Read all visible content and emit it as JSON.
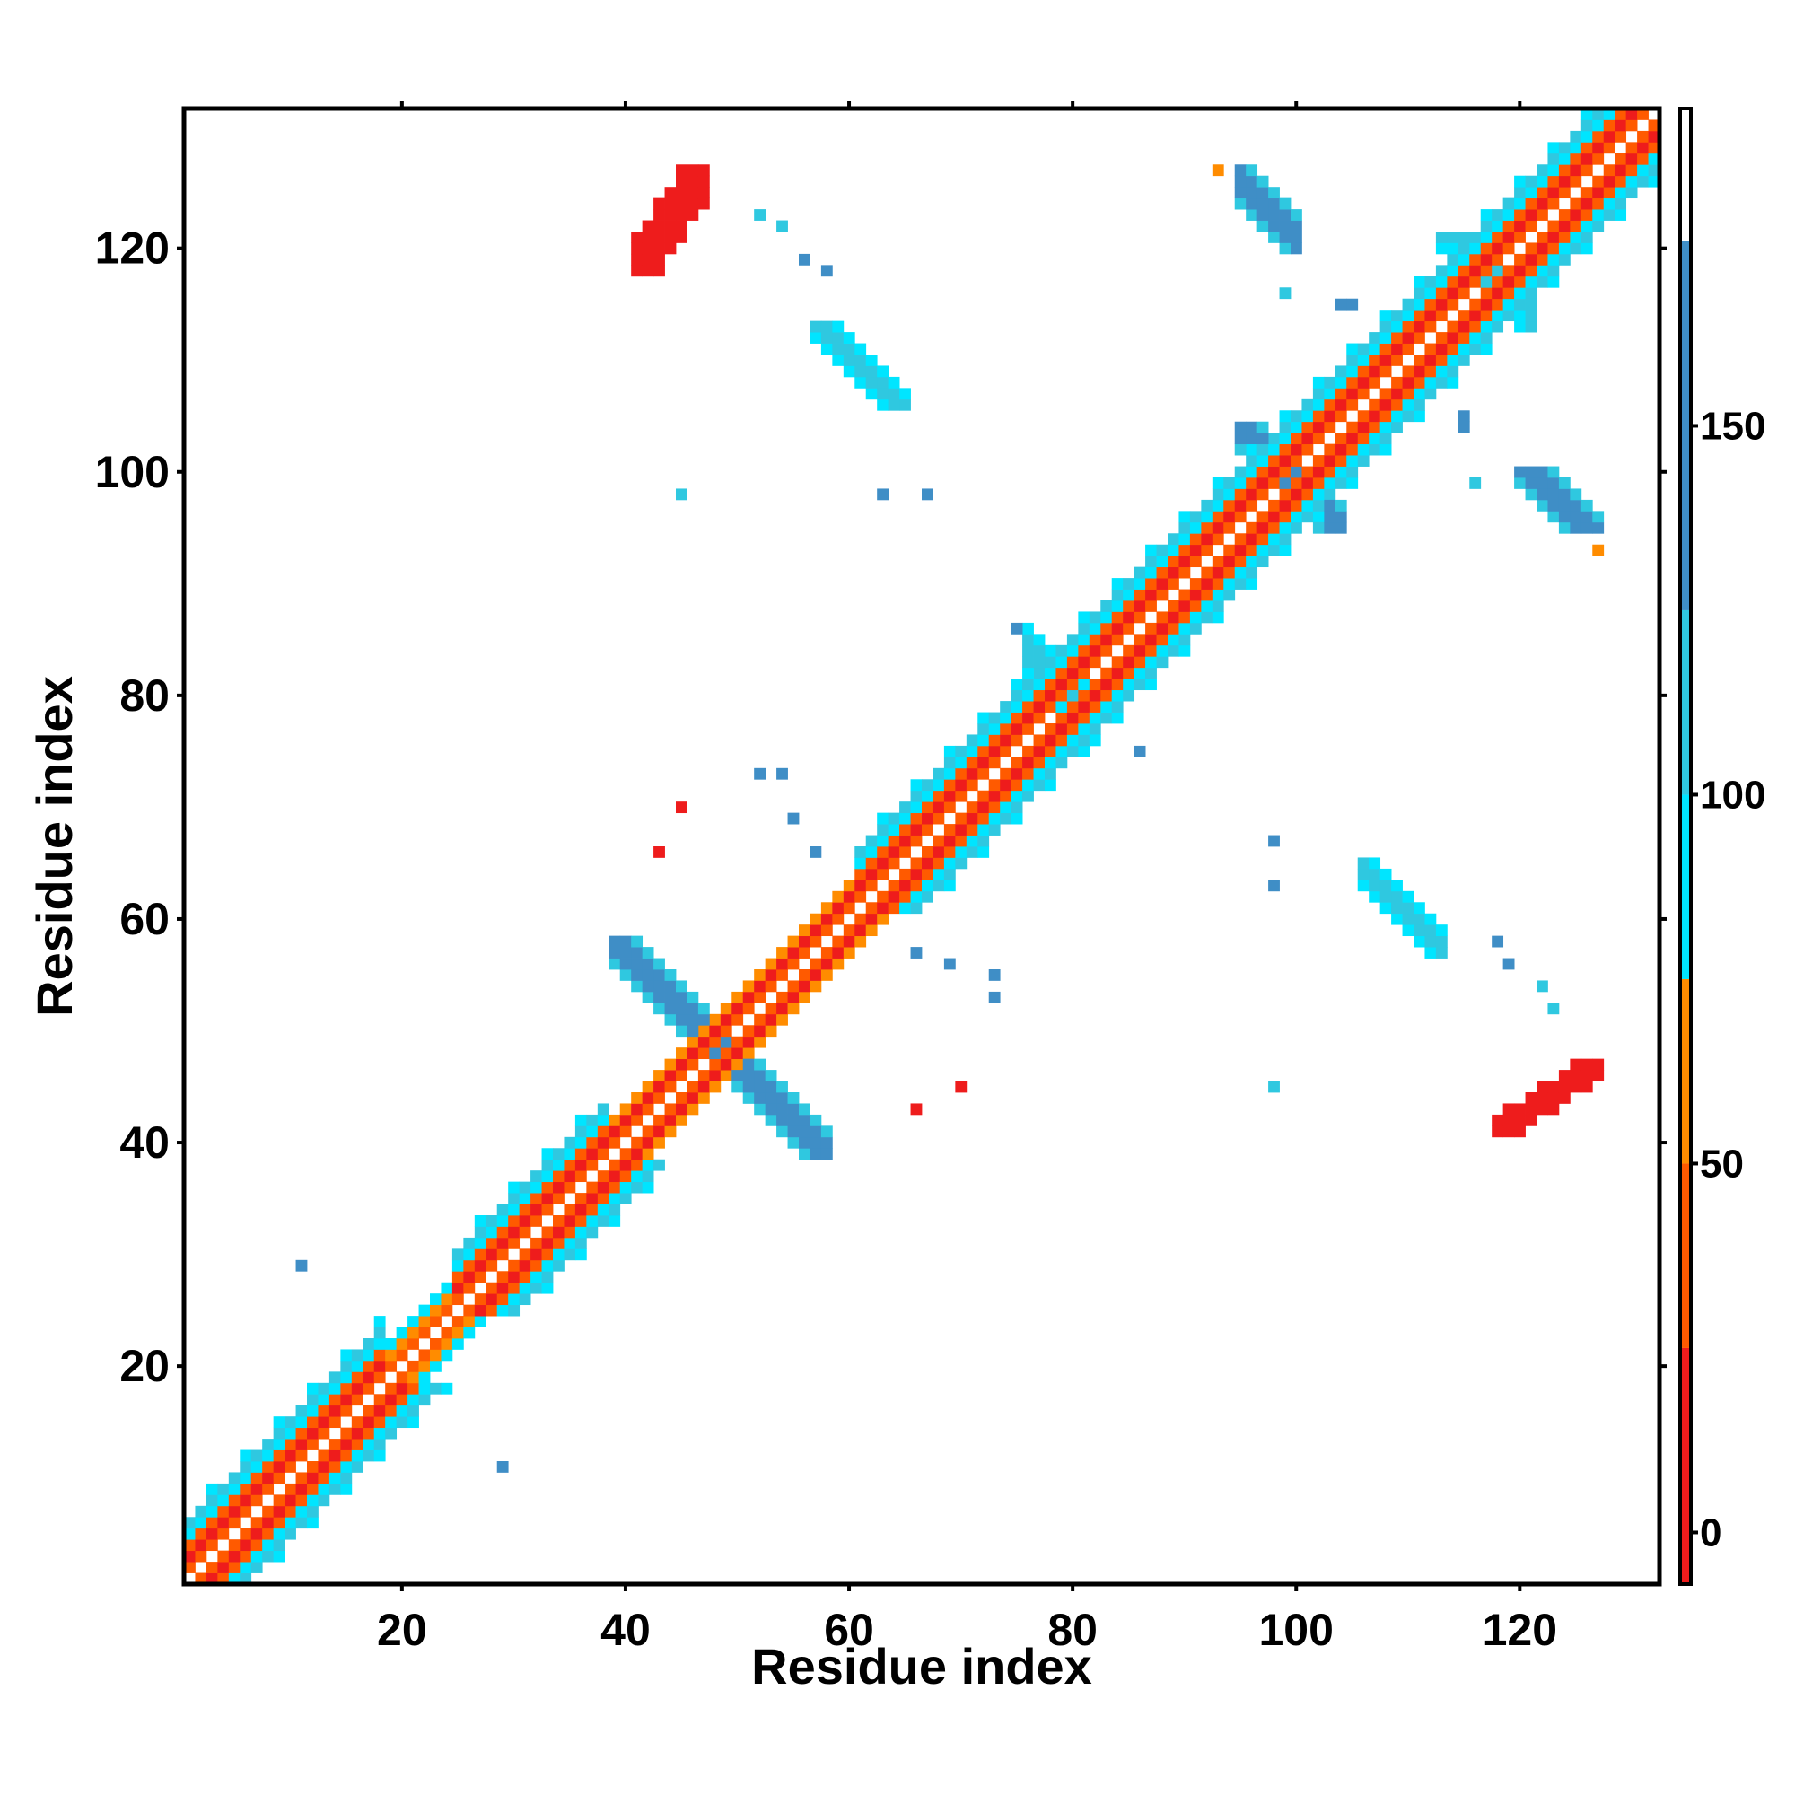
{
  "chart_data": {
    "type": "heatmap",
    "title": "",
    "xlabel": "Residue index",
    "ylabel": "Residue index",
    "xlim": [
      1,
      132
    ],
    "ylim": [
      1,
      132
    ],
    "xticks": [
      20,
      40,
      60,
      80,
      100,
      120
    ],
    "yticks": [
      20,
      40,
      60,
      80,
      100,
      120
    ],
    "legend": "right colorbar",
    "colorbar": {
      "ticks": [
        0,
        50,
        100,
        150
      ],
      "range": [
        -7,
        193
      ],
      "bands": [
        {
          "from": -7,
          "to": 25,
          "color": "#ee1c1c"
        },
        {
          "from": 25,
          "to": 50,
          "color": "#ff5a00"
        },
        {
          "from": 50,
          "to": 75,
          "color": "#ff8c00"
        },
        {
          "from": 75,
          "to": 100,
          "color": "#00e5ff"
        },
        {
          "from": 100,
          "to": 125,
          "color": "#2fc8e0"
        },
        {
          "from": 125,
          "to": 175,
          "color": "#3f8ec6"
        },
        {
          "from": 175,
          "to": 193,
          "color": "#ffffff"
        }
      ]
    },
    "diagonal_segments": [
      {
        "from": 1,
        "to": 18,
        "structure": "helix"
      },
      {
        "from": 18,
        "to": 24,
        "structure": "turn"
      },
      {
        "from": 24,
        "to": 38,
        "structure": "helix"
      },
      {
        "from": 38,
        "to": 48,
        "structure": "strand"
      },
      {
        "from": 48,
        "to": 60,
        "structure": "strand"
      },
      {
        "from": 60,
        "to": 86,
        "structure": "helix"
      },
      {
        "from": 86,
        "to": 100,
        "structure": "helix"
      },
      {
        "from": 100,
        "to": 118,
        "structure": "helix"
      },
      {
        "from": 118,
        "to": 132,
        "structure": "helix"
      }
    ],
    "contact_blocks": [
      {
        "x": [
          41,
          47
        ],
        "y": [
          118,
          127
        ],
        "orientation": "parallel",
        "value": 20
      },
      {
        "x": [
          118,
          127
        ],
        "y": [
          41,
          47
        ],
        "orientation": "parallel",
        "value": 20
      },
      {
        "x": [
          39,
          58
        ],
        "y": [
          39,
          58
        ],
        "orientation": "antiparallel",
        "value": 140
      },
      {
        "x": [
          95,
          104
        ],
        "y": [
          95,
          104
        ],
        "orientation": "antiparallel",
        "value": 140
      },
      {
        "x": [
          95,
          100
        ],
        "y": [
          120,
          127
        ],
        "orientation": "antiparallel",
        "value": 130
      },
      {
        "x": [
          120,
          127
        ],
        "y": [
          95,
          100
        ],
        "orientation": "antiparallel",
        "value": 130
      },
      {
        "x": [
          57,
          65
        ],
        "y": [
          106,
          113
        ],
        "orientation": "antiparallel",
        "value": 115
      },
      {
        "x": [
          106,
          113
        ],
        "y": [
          57,
          65
        ],
        "orientation": "antiparallel",
        "value": 115
      },
      {
        "x": [
          117,
          121
        ],
        "y": [
          113,
          119
        ],
        "orientation": "antiparallel",
        "value": 110
      },
      {
        "x": [
          113,
          119
        ],
        "y": [
          117,
          121
        ],
        "orientation": "antiparallel",
        "value": 110
      },
      {
        "x": [
          76,
          82
        ],
        "y": [
          76,
          86
        ],
        "orientation": "antiparallel",
        "value": 120
      }
    ],
    "isolated_contacts": [
      {
        "x": 11,
        "y": 29,
        "value": 150
      },
      {
        "x": 29,
        "y": 11,
        "value": 150
      },
      {
        "x": 45,
        "y": 70,
        "value": 5
      },
      {
        "x": 43,
        "y": 66,
        "value": 5
      },
      {
        "x": 70,
        "y": 45,
        "value": 5
      },
      {
        "x": 66,
        "y": 43,
        "value": 5
      },
      {
        "x": 52,
        "y": 73,
        "value": 150
      },
      {
        "x": 54,
        "y": 73,
        "value": 150
      },
      {
        "x": 55,
        "y": 69,
        "value": 150
      },
      {
        "x": 57,
        "y": 66,
        "value": 150
      },
      {
        "x": 73,
        "y": 55,
        "value": 150
      },
      {
        "x": 73,
        "y": 53,
        "value": 150
      },
      {
        "x": 69,
        "y": 56,
        "value": 150
      },
      {
        "x": 66,
        "y": 57,
        "value": 150
      },
      {
        "x": 45,
        "y": 98,
        "value": 110
      },
      {
        "x": 63,
        "y": 98,
        "value": 150
      },
      {
        "x": 67,
        "y": 98,
        "value": 150
      },
      {
        "x": 98,
        "y": 45,
        "value": 110
      },
      {
        "x": 98,
        "y": 63,
        "value": 150
      },
      {
        "x": 98,
        "y": 67,
        "value": 150
      },
      {
        "x": 52,
        "y": 123,
        "value": 110
      },
      {
        "x": 54,
        "y": 122,
        "value": 110
      },
      {
        "x": 56,
        "y": 119,
        "value": 150
      },
      {
        "x": 58,
        "y": 118,
        "value": 150
      },
      {
        "x": 123,
        "y": 52,
        "value": 110
      },
      {
        "x": 122,
        "y": 54,
        "value": 110
      },
      {
        "x": 119,
        "y": 56,
        "value": 150
      },
      {
        "x": 118,
        "y": 58,
        "value": 150
      },
      {
        "x": 99,
        "y": 116,
        "value": 110
      },
      {
        "x": 105,
        "y": 115,
        "value": 150
      },
      {
        "x": 116,
        "y": 99,
        "value": 110
      },
      {
        "x": 115,
        "y": 105,
        "value": 150
      },
      {
        "x": 86,
        "y": 75,
        "value": 150
      },
      {
        "x": 75,
        "y": 86,
        "value": 150
      },
      {
        "x": 115,
        "y": 104,
        "value": 150
      },
      {
        "x": 104,
        "y": 115,
        "value": 150
      },
      {
        "x": 93,
        "y": 127,
        "value": 60
      },
      {
        "x": 127,
        "y": 93,
        "value": 60
      }
    ]
  }
}
